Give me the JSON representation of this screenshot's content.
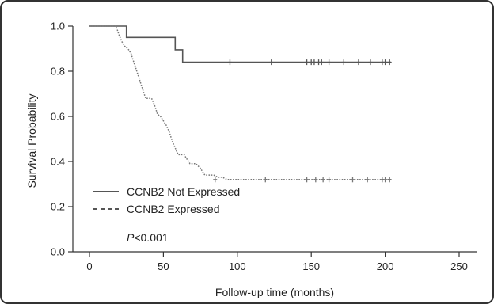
{
  "chart_data": {
    "type": "line",
    "xlabel": "Follow-up time (months)",
    "ylabel": "Survival Probability",
    "xlim": [
      0,
      250
    ],
    "ylim": [
      0,
      1.0
    ],
    "x_ticks": [
      0,
      50,
      100,
      150,
      200,
      250
    ],
    "y_ticks": [
      0.0,
      0.2,
      0.4,
      0.6,
      0.8,
      1.0
    ],
    "x_tick_labels": [
      "0",
      "50",
      "100",
      "150",
      "200",
      "250"
    ],
    "y_tick_labels": [
      "0.0",
      "0.2",
      "0.4",
      "0.6",
      "0.8",
      "1.0"
    ],
    "grid": false,
    "legend_position": "lower-left",
    "annotation": {
      "italic": "P",
      "rest": "<0.001"
    },
    "series": [
      {
        "name": "CCNB2 Not Expressed",
        "style": "solid",
        "color": "#555555",
        "x": [
          0,
          25,
          25,
          58,
          58,
          63,
          63,
          68,
          68,
          204
        ],
        "y": [
          1.0,
          1.0,
          0.95,
          0.95,
          0.895,
          0.895,
          0.84,
          0.84,
          0.84,
          0.84
        ],
        "censor_x": [
          95,
          123,
          147,
          150,
          152,
          155,
          157,
          162,
          172,
          182,
          190,
          198,
          200,
          203
        ],
        "censor_y": 0.84
      },
      {
        "name": "CCNB2 Expressed",
        "style": "dotted",
        "color": "#777777",
        "x": [
          0,
          18,
          20,
          22,
          24,
          26,
          28,
          30,
          32,
          34,
          36,
          38,
          40,
          42,
          44,
          46,
          48,
          50,
          52,
          54,
          56,
          58,
          60,
          62,
          64,
          66,
          68,
          72,
          75,
          78,
          80,
          82,
          84,
          87,
          90,
          93,
          95,
          204
        ],
        "y": [
          1.0,
          1.0,
          0.96,
          0.93,
          0.91,
          0.9,
          0.88,
          0.84,
          0.8,
          0.76,
          0.72,
          0.68,
          0.68,
          0.68,
          0.65,
          0.61,
          0.6,
          0.58,
          0.56,
          0.53,
          0.49,
          0.46,
          0.43,
          0.43,
          0.43,
          0.41,
          0.39,
          0.39,
          0.37,
          0.34,
          0.34,
          0.34,
          0.34,
          0.33,
          0.33,
          0.32,
          0.32,
          0.32
        ],
        "censor_x": [
          85,
          119,
          147,
          153,
          158,
          162,
          178,
          188,
          198,
          200,
          203
        ],
        "censor_y": 0.32
      }
    ]
  }
}
